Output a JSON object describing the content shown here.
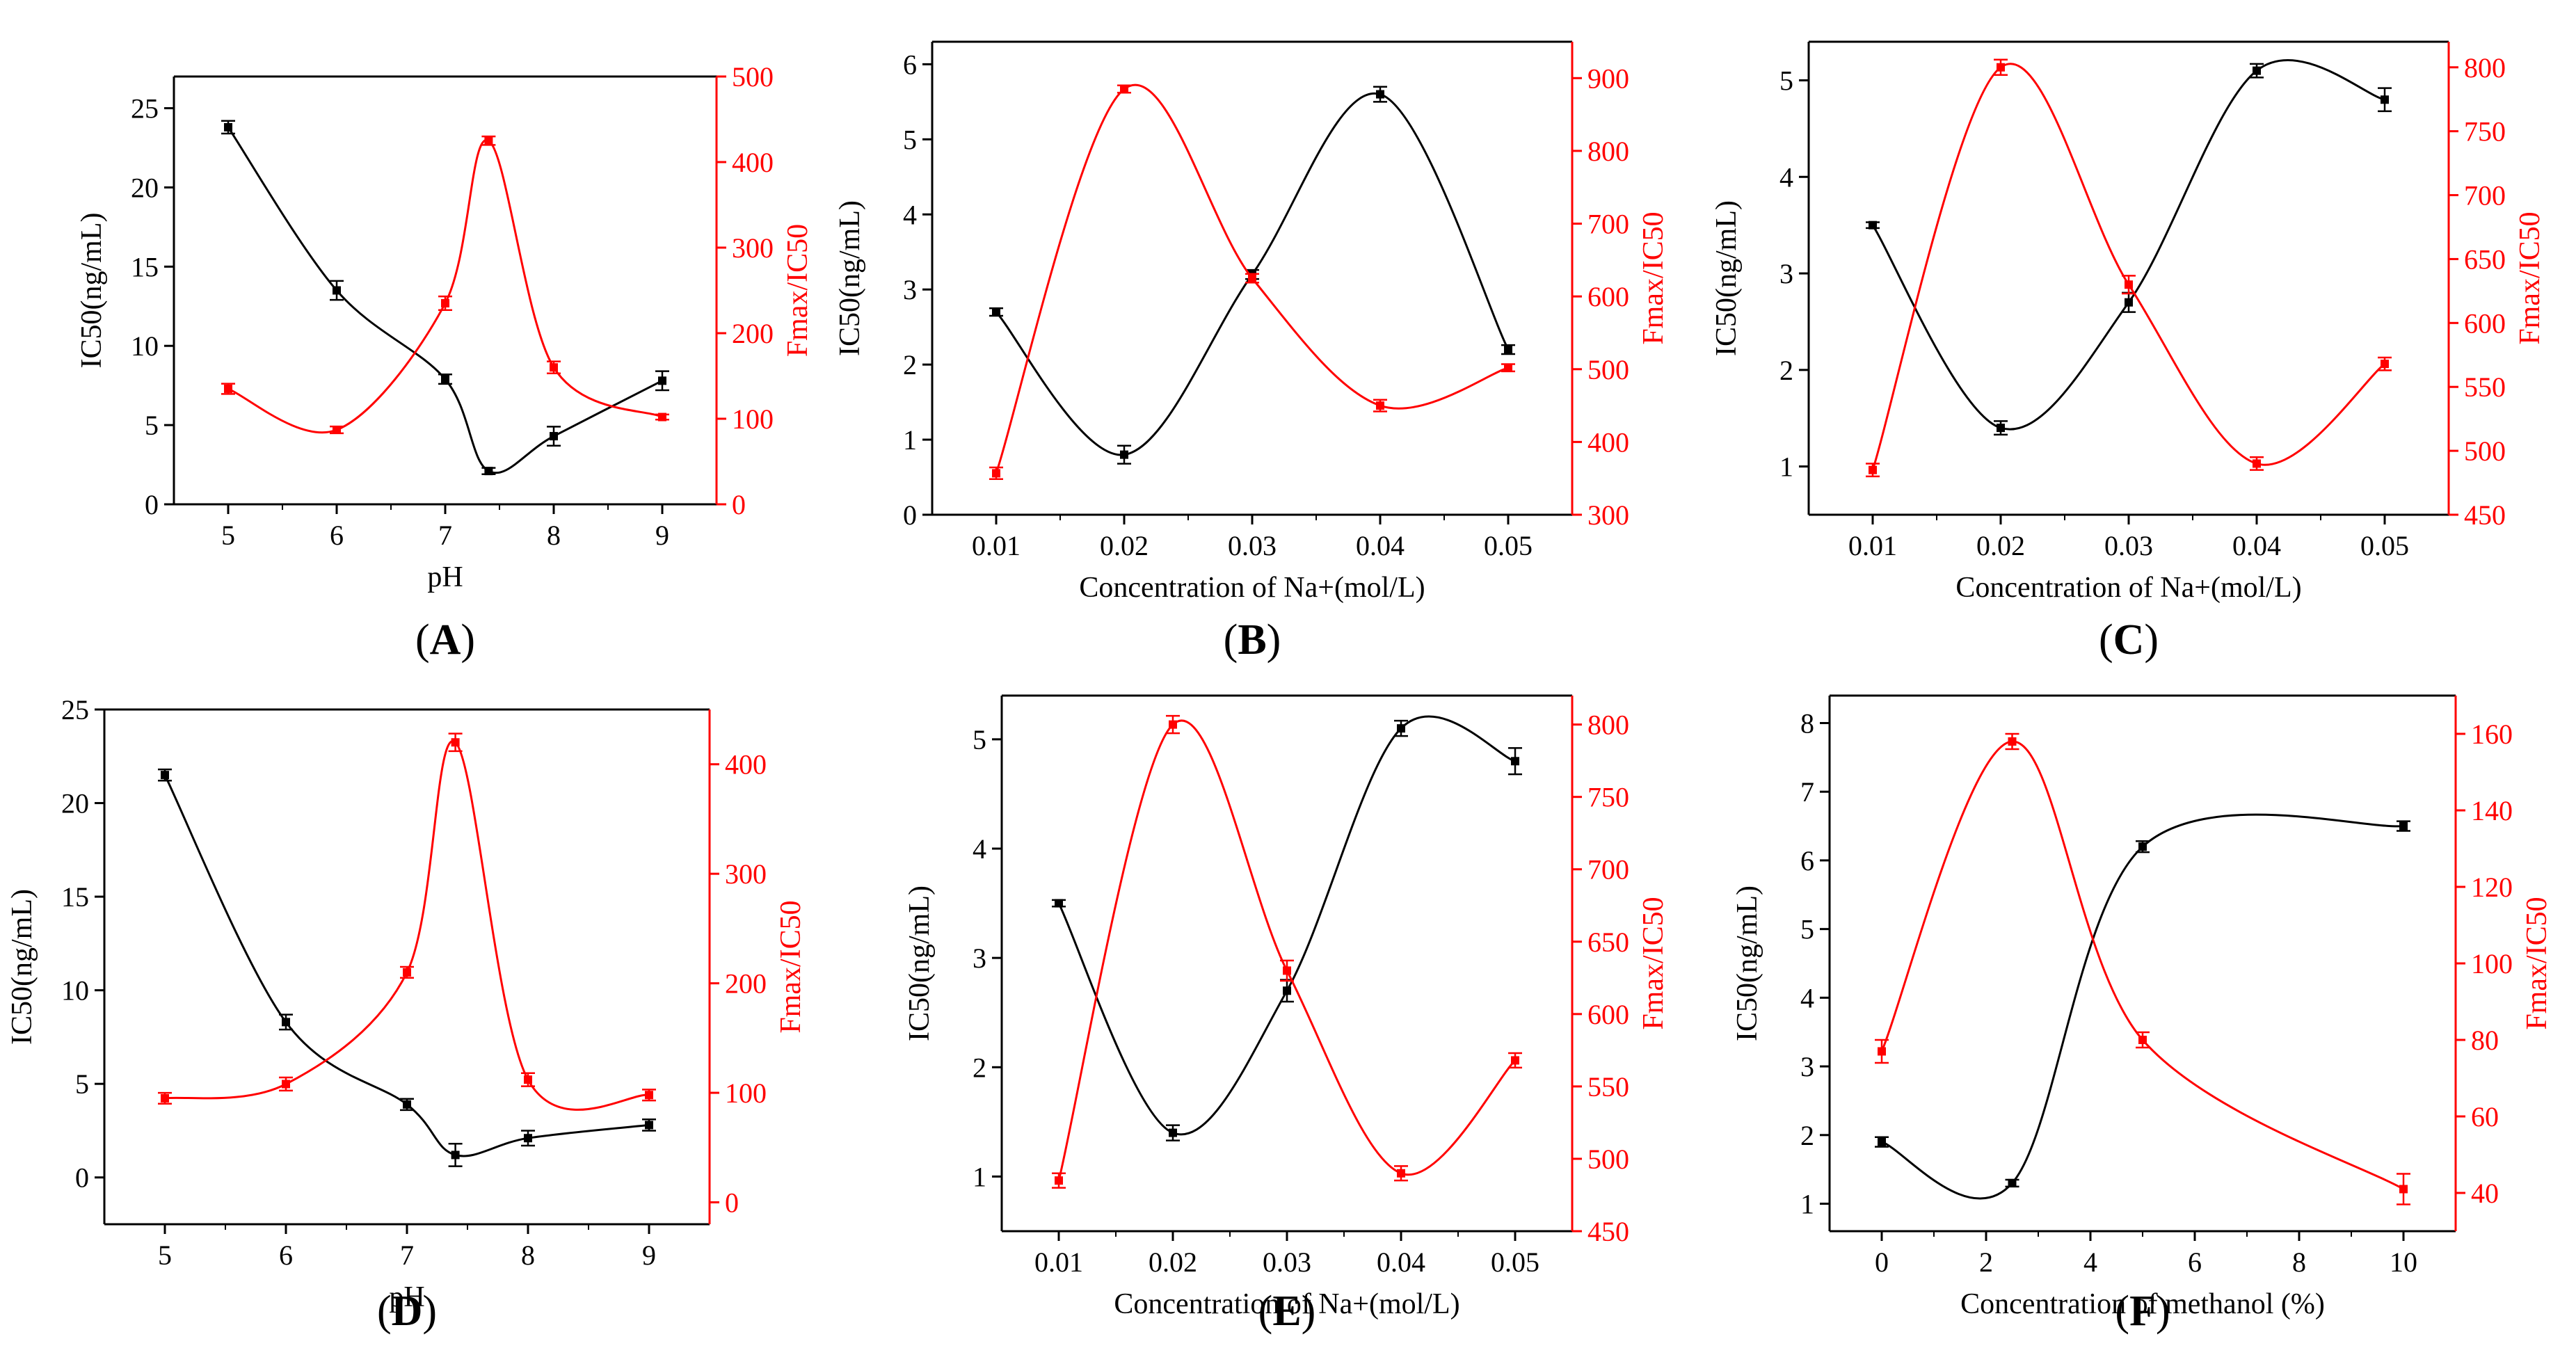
{
  "colors": {
    "left": "#000000",
    "right": "#ff0000"
  },
  "chart_data": [
    {
      "id": "A",
      "letter": "A",
      "type": "line",
      "xlabel": "pH",
      "xticks": [
        5,
        6,
        7,
        8,
        9
      ],
      "xticklabels": [
        "5",
        "6",
        "7",
        "8",
        "9"
      ],
      "xlim": [
        4.5,
        9.5
      ],
      "ylabel_left": "IC50(ng/mL)",
      "ylim_left": [
        0,
        27
      ],
      "yticks_left": [
        0,
        5,
        10,
        15,
        20,
        25
      ],
      "ylabel_right": "Fmax/IC50",
      "ylim_right": [
        0,
        500
      ],
      "yticks_right": [
        0,
        100,
        200,
        300,
        400,
        500
      ],
      "series": [
        {
          "name": "IC50",
          "axis": "left",
          "x": [
            5,
            6,
            7,
            7.4,
            8,
            9
          ],
          "values": [
            23.8,
            13.5,
            7.9,
            2.1,
            4.3,
            7.8
          ],
          "errors": [
            0.4,
            0.6,
            0.3,
            0.2,
            0.6,
            0.6
          ]
        },
        {
          "name": "Fmax/IC50",
          "axis": "right",
          "x": [
            5,
            6,
            7,
            7.4,
            8,
            9
          ],
          "values": [
            135,
            87,
            235,
            425,
            160,
            102
          ],
          "errors": [
            6,
            4,
            8,
            5,
            7,
            3
          ]
        }
      ]
    },
    {
      "id": "B",
      "letter": "B",
      "type": "line",
      "xlabel": "Concentration of Na+(mol/L)",
      "xticks": [
        0.01,
        0.02,
        0.03,
        0.04,
        0.05
      ],
      "xticklabels": [
        "0.01",
        "0.02",
        "0.03",
        "0.04",
        "0.05"
      ],
      "xlim": [
        0.005,
        0.055
      ],
      "ylabel_left": "IC50(ng/mL)",
      "ylim_left": [
        0,
        6.3
      ],
      "yticks_left": [
        0,
        1,
        2,
        3,
        4,
        5,
        6
      ],
      "ylabel_right": "Fmax/IC50",
      "ylim_right": [
        300,
        950
      ],
      "yticks_right": [
        300,
        400,
        500,
        600,
        700,
        800,
        900
      ],
      "series": [
        {
          "name": "IC50",
          "axis": "left",
          "x": [
            0.01,
            0.02,
            0.03,
            0.04,
            0.05
          ],
          "values": [
            2.7,
            0.8,
            3.2,
            5.6,
            2.2
          ],
          "errors": [
            0.05,
            0.12,
            0.06,
            0.1,
            0.06
          ]
        },
        {
          "name": "Fmax/IC50",
          "axis": "right",
          "x": [
            0.01,
            0.02,
            0.03,
            0.04,
            0.05
          ],
          "values": [
            357,
            885,
            625,
            450,
            502
          ],
          "errors": [
            8,
            5,
            6,
            8,
            5
          ]
        }
      ]
    },
    {
      "id": "C",
      "letter": "C",
      "type": "line",
      "xlabel": "Concentration of Na+(mol/L)",
      "xticks": [
        0.01,
        0.02,
        0.03,
        0.04,
        0.05
      ],
      "xticklabels": [
        "0.01",
        "0.02",
        "0.03",
        "0.04",
        "0.05"
      ],
      "xlim": [
        0.005,
        0.055
      ],
      "ylabel_left": "IC50(ng/mL)",
      "ylim_left": [
        0.5,
        5.4
      ],
      "yticks_left": [
        1,
        2,
        3,
        4,
        5
      ],
      "ylabel_right": "Fmax/IC50",
      "ylim_right": [
        450,
        820
      ],
      "yticks_right": [
        450,
        500,
        550,
        600,
        650,
        700,
        750,
        800
      ],
      "series": [
        {
          "name": "IC50",
          "axis": "left",
          "x": [
            0.01,
            0.02,
            0.03,
            0.04,
            0.05
          ],
          "values": [
            3.5,
            1.4,
            2.7,
            5.1,
            4.8
          ],
          "errors": [
            0.03,
            0.07,
            0.1,
            0.07,
            0.12
          ]
        },
        {
          "name": "Fmax/IC50",
          "axis": "right",
          "x": [
            0.01,
            0.02,
            0.03,
            0.04,
            0.05
          ],
          "values": [
            485,
            800,
            630,
            490,
            568
          ],
          "errors": [
            5,
            6,
            7,
            5,
            5
          ]
        }
      ]
    },
    {
      "id": "D",
      "letter": "D",
      "type": "line",
      "xlabel": "pH",
      "xticks": [
        5,
        6,
        7,
        8,
        9
      ],
      "xticklabels": [
        "5",
        "6",
        "7",
        "8",
        "9"
      ],
      "xlim": [
        4.5,
        9.5
      ],
      "ylabel_left": "IC50(ng/mL)",
      "ylim_left": [
        -2.5,
        25
      ],
      "yticks_left": [
        0,
        5,
        10,
        15,
        20,
        25
      ],
      "ylabel_right": "Fmax/IC50",
      "ylim_right": [
        -20,
        450
      ],
      "yticks_right": [
        0,
        100,
        200,
        300,
        400
      ],
      "series": [
        {
          "name": "IC50",
          "axis": "left",
          "x": [
            5,
            6,
            7,
            7.4,
            8,
            9
          ],
          "values": [
            21.5,
            8.3,
            3.9,
            1.2,
            2.1,
            2.8
          ],
          "errors": [
            0.3,
            0.4,
            0.3,
            0.6,
            0.4,
            0.3
          ]
        },
        {
          "name": "Fmax/IC50",
          "axis": "right",
          "x": [
            5,
            6,
            7,
            7.4,
            8,
            9
          ],
          "values": [
            95,
            108,
            210,
            420,
            112,
            98
          ],
          "errors": [
            5,
            6,
            5,
            8,
            6,
            5
          ]
        }
      ]
    },
    {
      "id": "E",
      "letter": "E",
      "type": "line",
      "xlabel": "Concentration of Na+(mol/L)",
      "xticks": [
        0.01,
        0.02,
        0.03,
        0.04,
        0.05
      ],
      "xticklabels": [
        "0.01",
        "0.02",
        "0.03",
        "0.04",
        "0.05"
      ],
      "xlim": [
        0.005,
        0.055
      ],
      "ylabel_left": "IC50(ng/mL)",
      "ylim_left": [
        0.5,
        5.4
      ],
      "yticks_left": [
        1,
        2,
        3,
        4,
        5
      ],
      "ylabel_right": "Fmax/IC50",
      "ylim_right": [
        450,
        820
      ],
      "yticks_right": [
        450,
        500,
        550,
        600,
        650,
        700,
        750,
        800
      ],
      "series": [
        {
          "name": "IC50",
          "axis": "left",
          "x": [
            0.01,
            0.02,
            0.03,
            0.04,
            0.05
          ],
          "values": [
            3.5,
            1.4,
            2.7,
            5.1,
            4.8
          ],
          "errors": [
            0.03,
            0.07,
            0.1,
            0.07,
            0.12
          ]
        },
        {
          "name": "Fmax/IC50",
          "axis": "right",
          "x": [
            0.01,
            0.02,
            0.03,
            0.04,
            0.05
          ],
          "values": [
            485,
            800,
            630,
            490,
            568
          ],
          "errors": [
            5,
            6,
            7,
            5,
            5
          ]
        }
      ]
    },
    {
      "id": "F",
      "letter": "F",
      "type": "line",
      "xlabel": "Concentration of methanol (%)",
      "xticks": [
        0,
        2,
        4,
        6,
        8,
        10
      ],
      "xticklabels": [
        "0",
        "2",
        "4",
        "6",
        "8",
        "10"
      ],
      "xlim": [
        -1,
        11
      ],
      "ylabel_left": "IC50(ng/mL)",
      "ylim_left": [
        0.6,
        8.4
      ],
      "yticks_left": [
        1,
        2,
        3,
        4,
        5,
        6,
        7,
        8
      ],
      "ylabel_right": "Fmax/IC50",
      "ylim_right": [
        30,
        170
      ],
      "yticks_right": [
        40,
        60,
        80,
        100,
        120,
        140,
        160
      ],
      "series": [
        {
          "name": "IC50",
          "axis": "left",
          "x": [
            0,
            2.5,
            5,
            10
          ],
          "values": [
            1.9,
            1.3,
            6.2,
            6.5
          ],
          "errors": [
            0.07,
            0.05,
            0.08,
            0.07
          ]
        },
        {
          "name": "Fmax/IC50",
          "axis": "right",
          "x": [
            0,
            2.5,
            5,
            10
          ],
          "values": [
            77,
            158,
            80,
            41
          ],
          "errors": [
            3,
            2,
            2,
            4
          ]
        }
      ]
    }
  ]
}
